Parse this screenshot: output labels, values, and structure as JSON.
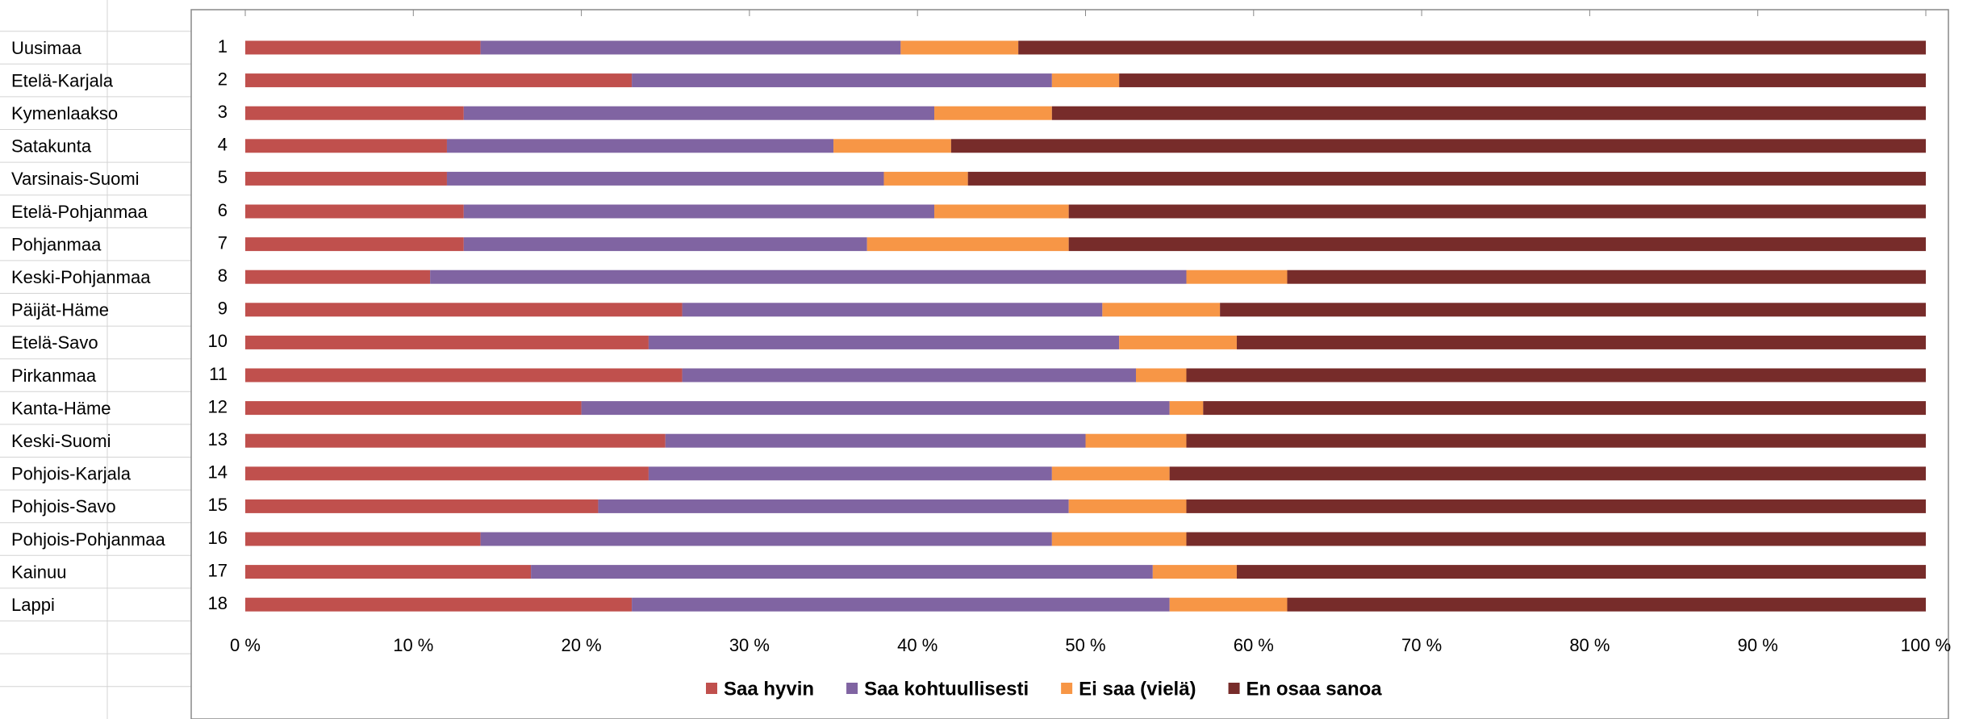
{
  "sheet": {
    "row_headers": [
      "Uusimaa",
      "Etelä-Karjala",
      "Kymenlaakso",
      "Satakunta",
      "Varsinais-Suomi",
      "Etelä-Pohjanmaa",
      "Pohjanmaa",
      "Keski-Pohjanmaa",
      "Päijät-Häme",
      "Etelä-Savo",
      "Pirkanmaa",
      "Kanta-Häme",
      "Keski-Suomi",
      "Pohjois-Karjala",
      "Pohjois-Savo",
      "Pohjois-Pohjanmaa",
      "Kainuu",
      "Lappi"
    ]
  },
  "chart_data": {
    "type": "stacked_barh",
    "categories": [
      "1",
      "2",
      "3",
      "4",
      "5",
      "6",
      "7",
      "8",
      "9",
      "10",
      "11",
      "12",
      "13",
      "14",
      "15",
      "16",
      "17",
      "18"
    ],
    "series": [
      {
        "name": "Saa hyvin",
        "color": "#c0504d",
        "values": [
          14,
          23,
          13,
          12,
          12,
          13,
          13,
          11,
          26,
          24,
          26,
          20,
          25,
          24,
          21,
          14,
          17,
          23
        ]
      },
      {
        "name": "Saa kohtuullisesti",
        "color": "#8064a2",
        "values": [
          25,
          25,
          28,
          23,
          26,
          28,
          24,
          45,
          25,
          28,
          27,
          35,
          25,
          24,
          28,
          34,
          37,
          32
        ]
      },
      {
        "name": "Ei saa (vielä)",
        "color": "#f79646",
        "values": [
          7,
          4,
          7,
          7,
          5,
          8,
          12,
          6,
          7,
          7,
          3,
          2,
          6,
          7,
          7,
          8,
          5,
          7
        ]
      },
      {
        "name": "En osaa sanoa",
        "color": "#772c2a",
        "values": [
          54,
          48,
          52,
          58,
          57,
          51,
          51,
          38,
          42,
          41,
          44,
          43,
          44,
          45,
          44,
          44,
          41,
          38
        ]
      }
    ],
    "xlim": [
      0,
      100
    ],
    "xticks": [
      {
        "value": 0,
        "label": "0 %"
      },
      {
        "value": 10,
        "label": "10 %"
      },
      {
        "value": 20,
        "label": "20 %"
      },
      {
        "value": 30,
        "label": "30 %"
      },
      {
        "value": 40,
        "label": "40 %"
      },
      {
        "value": 50,
        "label": "50 %"
      },
      {
        "value": 60,
        "label": "60 %"
      },
      {
        "value": 70,
        "label": "70 %"
      },
      {
        "value": 80,
        "label": "80 %"
      },
      {
        "value": 90,
        "label": "90 %"
      },
      {
        "value": 100,
        "label": "100 %"
      }
    ],
    "legend": "bottom"
  }
}
